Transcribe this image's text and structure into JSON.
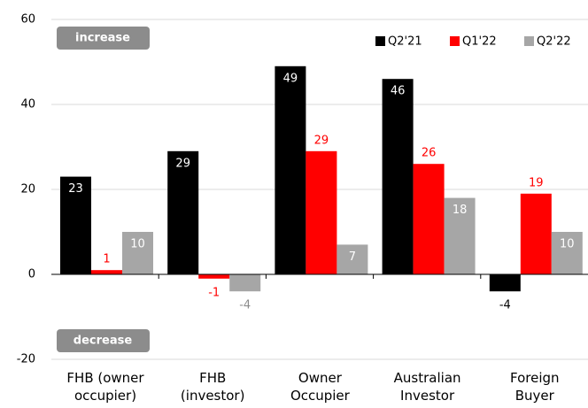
{
  "chart_data": {
    "type": "bar",
    "categories": [
      "FHB (owner\noccupier)",
      "FHB\n(investor)",
      "Owner\nOccupier",
      "Australian\nInvestor",
      "Foreign\nBuyer"
    ],
    "series": [
      {
        "name": "Q2'21",
        "color": "#000000",
        "values": [
          23,
          29,
          49,
          46,
          -4
        ]
      },
      {
        "name": "Q1'22",
        "color": "#ff0000",
        "values": [
          1,
          -1,
          29,
          26,
          19
        ]
      },
      {
        "name": "Q2'22",
        "color": "#a6a6a6",
        "values": [
          10,
          -4,
          7,
          18,
          10
        ]
      }
    ],
    "ylim": [
      -20,
      60
    ],
    "yticks": [
      -20,
      0,
      20,
      40,
      60
    ],
    "grid": true,
    "legend": "top-right",
    "annotations": [
      "increase",
      "decrease"
    ]
  }
}
